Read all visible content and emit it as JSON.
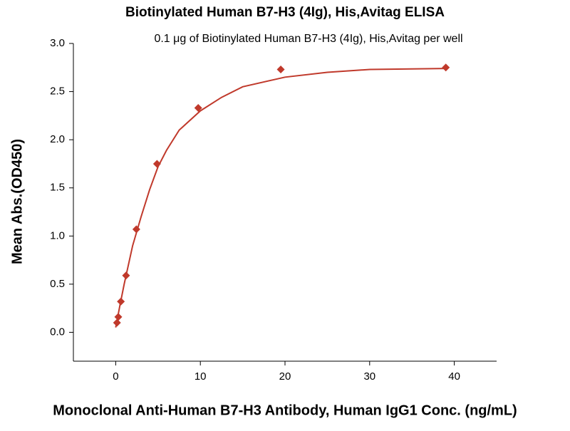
{
  "chart_data": {
    "type": "scatter",
    "title": "Biotinylated Human B7-H3 (4Ig), His,Avitag ELISA",
    "subtitle": "0.1 μg of Biotinylated Human B7-H3 (4Ig), His,Avitag per well",
    "x_label": "Monoclonal Anti-Human B7-H3 Antibody, Human IgG1 Conc. (ng/mL)",
    "y_label": "Mean Abs.(OD450)",
    "xlim": [
      -5,
      45
    ],
    "xticks": [
      0,
      10,
      20,
      30,
      40
    ],
    "ylim": [
      -0.3,
      3.0
    ],
    "yticks": [
      {
        "value": 0,
        "label": "0.0"
      },
      0.5,
      {
        "value": 1,
        "label": "1.0"
      },
      1.5,
      {
        "value": 2,
        "label": "2.0"
      },
      2.5,
      {
        "value": 3,
        "label": "3.0"
      }
    ],
    "series": [
      {
        "color": "#c0392b",
        "marker": "diamond",
        "x": [
          39,
          19.5,
          9.75,
          4.88,
          2.44,
          1.22,
          0.61,
          0.305,
          0.152
        ],
        "values": [
          2.75,
          2.73,
          2.33,
          1.75,
          1.07,
          0.59,
          0.32,
          0.16,
          0.1
        ]
      },
      {
        "color": "#c0392b",
        "marker": "line",
        "x": [
          0,
          0.5,
          1,
          2,
          3,
          4,
          5,
          6,
          7.5,
          10,
          12.5,
          15,
          20,
          25,
          30,
          39
        ],
        "values": [
          0.05,
          0.28,
          0.5,
          0.9,
          1.2,
          1.48,
          1.72,
          1.89,
          2.1,
          2.3,
          2.44,
          2.55,
          2.65,
          2.7,
          2.73,
          2.74
        ]
      }
    ]
  }
}
